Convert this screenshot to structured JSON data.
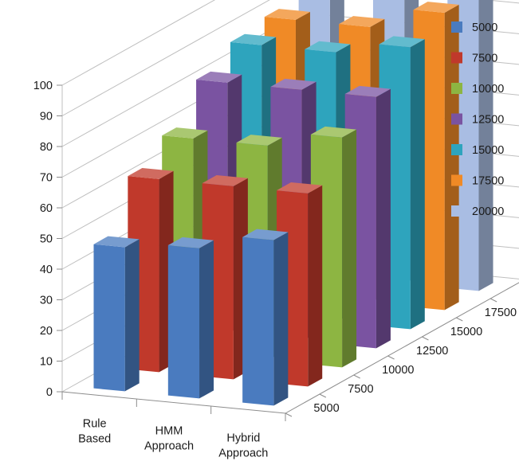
{
  "chart_data": {
    "type": "bar",
    "categories": [
      "Rule Based",
      "HMM Approach",
      "Hybrid Approach"
    ],
    "series": [
      {
        "name": "5000",
        "color": "#4a7bbf",
        "values": [
          47,
          49,
          54
        ]
      },
      {
        "name": "7500",
        "color": "#c0392b",
        "values": [
          63,
          63,
          63
        ]
      },
      {
        "name": "10000",
        "color": "#8db542",
        "values": [
          70,
          70,
          75
        ]
      },
      {
        "name": "12500",
        "color": "#7a53a1",
        "values": [
          82,
          82,
          82
        ]
      },
      {
        "name": "15000",
        "color": "#2ea4bd",
        "values": [
          88,
          88,
          92
        ]
      },
      {
        "name": "17500",
        "color": "#f08a26",
        "values": [
          90,
          90,
          97
        ]
      },
      {
        "name": "20000",
        "color": "#a9bde3",
        "values": [
          93,
          93,
          98
        ]
      }
    ],
    "yticks": [
      "0",
      "10",
      "20",
      "30",
      "40",
      "50",
      "60",
      "70",
      "80",
      "90",
      "100"
    ],
    "ylim": [
      0,
      100
    ],
    "depth_labels": [
      "5000",
      "7500",
      "10000",
      "12500",
      "15000",
      "17500",
      "20000"
    ],
    "legend_position": "right",
    "grid": true
  }
}
